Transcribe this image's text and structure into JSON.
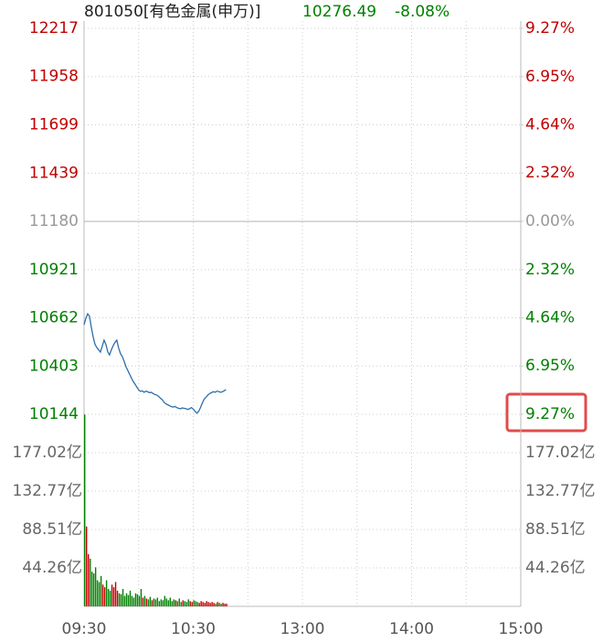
{
  "chart_data": [
    {
      "type": "line",
      "title": "801050[有色金属(申万)]",
      "annotations": [
        "10276.49",
        "-8.08%"
      ],
      "up_color": "#c00000",
      "down_color": "#008000",
      "flat_color": "#999999",
      "x": [
        0,
        1,
        2,
        3,
        4,
        5,
        6,
        7,
        8,
        9,
        10,
        11,
        12,
        13,
        14,
        15,
        16,
        17,
        18,
        19,
        20,
        21,
        22,
        23,
        24,
        25,
        26,
        27,
        28,
        29,
        30,
        31,
        32,
        33,
        34,
        35,
        36,
        37,
        38,
        39,
        40,
        41,
        42,
        43,
        44,
        45,
        46,
        47,
        48,
        49,
        50,
        51,
        52,
        53,
        54,
        55,
        56,
        57,
        58,
        59,
        60,
        61,
        62,
        63,
        64,
        65,
        66,
        67,
        68,
        69,
        70,
        71,
        72,
        73,
        74,
        75,
        76,
        77,
        78
      ],
      "xlim": [
        0,
        240
      ],
      "xticks": [
        {
          "value": 0,
          "label": "09:30"
        },
        {
          "value": 60,
          "label": "10:30"
        },
        {
          "value": 120,
          "label": "13:00"
        },
        {
          "value": 180,
          "label": "14:00"
        },
        {
          "value": 240,
          "label": "15:00"
        }
      ],
      "ylim": [
        10144,
        12217
      ],
      "yticks": [
        12217,
        11958,
        11699,
        11439,
        11180,
        10921,
        10662,
        10403,
        10144
      ],
      "y2lim": [
        -9.27,
        9.27
      ],
      "y2ticks": [
        {
          "value": 9.27,
          "label": "9.27%"
        },
        {
          "value": 6.95,
          "label": "6.95%"
        },
        {
          "value": 4.64,
          "label": "4.64%"
        },
        {
          "value": 2.32,
          "label": "2.32%"
        },
        {
          "value": 0,
          "label": "0.00%"
        },
        {
          "value": -2.32,
          "label": "2.32%"
        },
        {
          "value": -4.64,
          "label": "4.64%"
        },
        {
          "value": -6.95,
          "label": "6.95%"
        },
        {
          "value": -9.27,
          "label": "9.27%"
        }
      ],
      "grid": true,
      "series": [
        {
          "color": "#2f6ea8",
          "values": [
            10625,
            10660,
            10684,
            10670,
            10611,
            10560,
            10520,
            10503,
            10490,
            10478,
            10510,
            10542,
            10520,
            10480,
            10463,
            10490,
            10513,
            10530,
            10542,
            10500,
            10470,
            10454,
            10430,
            10400,
            10380,
            10360,
            10340,
            10320,
            10306,
            10290,
            10275,
            10267,
            10270,
            10262,
            10268,
            10265,
            10260,
            10262,
            10255,
            10250,
            10247,
            10240,
            10230,
            10222,
            10208,
            10200,
            10195,
            10190,
            10185,
            10183,
            10186,
            10180,
            10176,
            10174,
            10178,
            10176,
            10174,
            10170,
            10174,
            10180,
            10172,
            10160,
            10150,
            10160,
            10180,
            10205,
            10225,
            10235,
            10247,
            10255,
            10260,
            10265,
            10262,
            10268,
            10266,
            10262,
            10265,
            10270,
            10276.49
          ]
        }
      ]
    },
    {
      "type": "bar",
      "ylim": [
        0,
        221.28
      ],
      "yticks": [
        {
          "value": 177.02,
          "label": "177.02亿"
        },
        {
          "value": 132.77,
          "label": "132.77亿"
        },
        {
          "value": 88.51,
          "label": "88.51亿"
        },
        {
          "value": 44.26,
          "label": "44.26亿"
        }
      ],
      "grid": true,
      "values": [
        221,
        92,
        60,
        55,
        40,
        38,
        45,
        30,
        28,
        35,
        25,
        22,
        30,
        20,
        18,
        25,
        22,
        28,
        18,
        15,
        14,
        20,
        12,
        15,
        13,
        18,
        12,
        10,
        15,
        14,
        12,
        20,
        10,
        12,
        9,
        8,
        11,
        7,
        9,
        8,
        10,
        6,
        8,
        7,
        12,
        9,
        7,
        10,
        6,
        8,
        7,
        6,
        9,
        5,
        7,
        6,
        5,
        8,
        6,
        5,
        7,
        6,
        5,
        4,
        6,
        5,
        4,
        6,
        5,
        4,
        5,
        4,
        3,
        5,
        4,
        3,
        4,
        3,
        3
      ]
    }
  ]
}
